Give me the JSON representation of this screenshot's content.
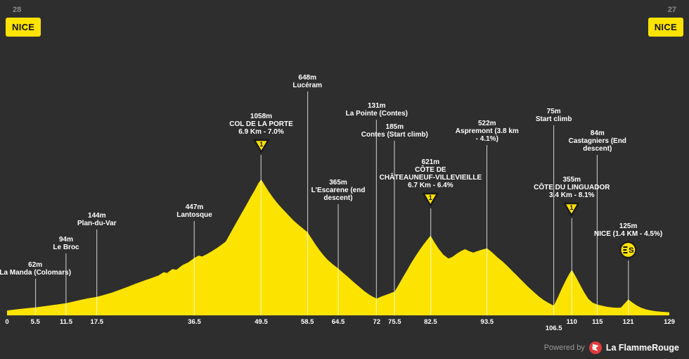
{
  "stage": {
    "left_number": "28",
    "left_name": "NICE",
    "right_number": "27",
    "right_name": "NICE"
  },
  "footer": {
    "powered_by": "Powered by",
    "brand": "La FlammeRouge"
  },
  "colors": {
    "background": "#2E2E2E",
    "profile_yellow": "#FCE300",
    "marker_line": "#FFFFFF",
    "text_light": "#FFFFFF",
    "text_gray": "#8A8A8A",
    "logo_red": "#E23B3B",
    "icon_outline": "#1A1A1A"
  },
  "chart_data": {
    "type": "area",
    "x_unit": "km",
    "y_unit": "m",
    "x_range": [
      0,
      129
    ],
    "y_range": [
      0,
      1100
    ],
    "grid": false,
    "legend": false,
    "x_ticks": [
      {
        "km": 0,
        "label": "0"
      },
      {
        "km": 5.5,
        "label": "5.5"
      },
      {
        "km": 11.5,
        "label": "11.5"
      },
      {
        "km": 17.5,
        "label": "17.5"
      },
      {
        "km": 36.5,
        "label": "36.5"
      },
      {
        "km": 49.5,
        "label": "49.5"
      },
      {
        "km": 58.5,
        "label": "58.5"
      },
      {
        "km": 64.5,
        "label": "64.5"
      },
      {
        "km": 72,
        "label": "72"
      },
      {
        "km": 75.5,
        "label": "75.5"
      },
      {
        "km": 82.5,
        "label": "82.5"
      },
      {
        "km": 93.5,
        "label": "93.5"
      },
      {
        "km": 106.5,
        "label": "106.5",
        "dy": 9
      },
      {
        "km": 110,
        "label": "110"
      },
      {
        "km": 115,
        "label": "115"
      },
      {
        "km": 121,
        "label": "121"
      },
      {
        "km": 129,
        "label": "129"
      }
    ],
    "markers": [
      {
        "km": 5.5,
        "elevation": "62m",
        "lines": [
          "62m",
          "La Manda (Colomars)"
        ],
        "icon": null,
        "line_h": 52
      },
      {
        "km": 11.5,
        "elevation": "94m",
        "lines": [
          "94m",
          "Le Broc"
        ],
        "icon": null,
        "line_h": 88
      },
      {
        "km": 17.5,
        "elevation": "144m",
        "lines": [
          "144m",
          "Plan-du-Var"
        ],
        "icon": null,
        "line_h": 122
      },
      {
        "km": 36.5,
        "elevation": "447m",
        "lines": [
          "447m",
          "Lantosque"
        ],
        "icon": null,
        "line_h": 134
      },
      {
        "km": 49.5,
        "elevation": "1058m",
        "lines": [
          "1058m",
          "COL DE LA PORTE",
          "6.9 Km - 7.0%"
        ],
        "icon": "cat",
        "icon_text": "1",
        "line_h": 228
      },
      {
        "km": 58.5,
        "elevation": "648m",
        "lines": [
          "648m",
          "Lucéram"
        ],
        "icon": null,
        "line_h": 318
      },
      {
        "km": 64.5,
        "elevation": "365m",
        "lines": [
          "365m",
          "L'Escarene (end",
          "descent)"
        ],
        "icon": null,
        "line_h": 158
      },
      {
        "km": 72,
        "elevation": "131m",
        "lines": [
          "131m",
          "La Pointe (Contes)"
        ],
        "icon": null,
        "line_h": 278
      },
      {
        "km": 75.5,
        "elevation": "185m",
        "lines": [
          "185m",
          "Contes (Start climb)"
        ],
        "icon": null,
        "line_h": 248
      },
      {
        "km": 82.5,
        "elevation": "621m",
        "lines": [
          "621m",
          "CÔTE DE",
          "CHÂTEAUNEUF-VILLEVIEILLE",
          "6.7 Km - 6.4%"
        ],
        "icon": "cat",
        "icon_text": "1",
        "line_h": 152
      },
      {
        "km": 93.5,
        "elevation": "522m",
        "lines": [
          "522m",
          "Aspremont (3.8 km",
          "- 4.1%)"
        ],
        "icon": null,
        "line_h": 242
      },
      {
        "km": 106.5,
        "elevation": "75m",
        "lines": [
          "75m",
          "Start climb"
        ],
        "icon": null,
        "line_h": 270
      },
      {
        "km": 110,
        "elevation": "355m",
        "lines": [
          "355m",
          "CÔTE DU LINGUADOR",
          "3.4 Km - 8.1%"
        ],
        "icon": "cat",
        "icon_text": "1",
        "line_h": 138
      },
      {
        "km": 115,
        "elevation": "84m",
        "lines": [
          "84m",
          "Castagniers (End",
          "descent)"
        ],
        "icon": null,
        "line_h": 228
      },
      {
        "km": 121,
        "elevation": "125m",
        "lines": [
          "125m",
          "NICE (1.4 KM - 4.5%)"
        ],
        "icon": "finish",
        "line_h": 78
      }
    ],
    "profile": [
      [
        0,
        38
      ],
      [
        1.5,
        45
      ],
      [
        3,
        52
      ],
      [
        4.5,
        58
      ],
      [
        5.5,
        62
      ],
      [
        7,
        70
      ],
      [
        8.5,
        78
      ],
      [
        10,
        86
      ],
      [
        11.5,
        94
      ],
      [
        13,
        108
      ],
      [
        14.5,
        122
      ],
      [
        16,
        134
      ],
      [
        17.5,
        144
      ],
      [
        19,
        160
      ],
      [
        20.5,
        178
      ],
      [
        22,
        200
      ],
      [
        23.5,
        222
      ],
      [
        25,
        246
      ],
      [
        26.5,
        268
      ],
      [
        28,
        288
      ],
      [
        29.5,
        310
      ],
      [
        30.5,
        336
      ],
      [
        31.2,
        330
      ],
      [
        32.2,
        360
      ],
      [
        33,
        355
      ],
      [
        34.2,
        392
      ],
      [
        35.3,
        412
      ],
      [
        36.5,
        447
      ],
      [
        37.3,
        465
      ],
      [
        38,
        458
      ],
      [
        39,
        478
      ],
      [
        40,
        502
      ],
      [
        41,
        527
      ],
      [
        42,
        556
      ],
      [
        42.6,
        575
      ],
      [
        43.4,
        632
      ],
      [
        44.2,
        690
      ],
      [
        45,
        746
      ],
      [
        45.8,
        802
      ],
      [
        46.6,
        858
      ],
      [
        47.4,
        916
      ],
      [
        48.2,
        972
      ],
      [
        49,
        1032
      ],
      [
        49.5,
        1058
      ],
      [
        50.2,
        1012
      ],
      [
        51,
        962
      ],
      [
        51.8,
        916
      ],
      [
        52.6,
        876
      ],
      [
        53.4,
        840
      ],
      [
        54.2,
        806
      ],
      [
        55,
        772
      ],
      [
        55.8,
        738
      ],
      [
        56.6,
        710
      ],
      [
        57.4,
        684
      ],
      [
        58.5,
        648
      ],
      [
        59.3,
        600
      ],
      [
        60.1,
        550
      ],
      [
        60.9,
        505
      ],
      [
        61.7,
        465
      ],
      [
        62.5,
        430
      ],
      [
        63.5,
        396
      ],
      [
        64.5,
        365
      ],
      [
        65.5,
        330
      ],
      [
        66.5,
        296
      ],
      [
        67.5,
        260
      ],
      [
        68.5,
        226
      ],
      [
        69.5,
        192
      ],
      [
        70.5,
        162
      ],
      [
        71.2,
        146
      ],
      [
        72,
        131
      ],
      [
        73,
        148
      ],
      [
        74,
        162
      ],
      [
        75.5,
        185
      ],
      [
        76.3,
        240
      ],
      [
        77.1,
        296
      ],
      [
        77.9,
        350
      ],
      [
        78.7,
        406
      ],
      [
        79.5,
        456
      ],
      [
        80.3,
        506
      ],
      [
        81.1,
        550
      ],
      [
        81.9,
        592
      ],
      [
        82.5,
        621
      ],
      [
        83.2,
        572
      ],
      [
        84,
        522
      ],
      [
        85,
        472
      ],
      [
        86,
        442
      ],
      [
        86.8,
        456
      ],
      [
        87.6,
        480
      ],
      [
        88.4,
        500
      ],
      [
        89.2,
        515
      ],
      [
        90,
        500
      ],
      [
        90.8,
        488
      ],
      [
        91.6,
        500
      ],
      [
        92.5,
        512
      ],
      [
        93.5,
        522
      ],
      [
        94.5,
        490
      ],
      [
        95.5,
        452
      ],
      [
        96.5,
        420
      ],
      [
        97.5,
        382
      ],
      [
        98.5,
        342
      ],
      [
        99.5,
        302
      ],
      [
        100.5,
        262
      ],
      [
        101.5,
        222
      ],
      [
        102.5,
        186
      ],
      [
        103.5,
        150
      ],
      [
        104.5,
        120
      ],
      [
        105.5,
        96
      ],
      [
        106.5,
        75
      ],
      [
        107.3,
        140
      ],
      [
        108,
        205
      ],
      [
        108.8,
        270
      ],
      [
        109.4,
        315
      ],
      [
        110,
        355
      ],
      [
        110.8,
        300
      ],
      [
        111.6,
        240
      ],
      [
        112.4,
        180
      ],
      [
        113.2,
        130
      ],
      [
        114,
        100
      ],
      [
        115,
        84
      ],
      [
        116,
        74
      ],
      [
        117,
        66
      ],
      [
        118,
        61
      ],
      [
        119,
        59
      ],
      [
        119.6,
        62
      ],
      [
        120.2,
        88
      ],
      [
        120.6,
        106
      ],
      [
        121,
        125
      ],
      [
        121.8,
        100
      ],
      [
        122.6,
        78
      ],
      [
        123.5,
        60
      ],
      [
        124.5,
        46
      ],
      [
        125.5,
        38
      ],
      [
        126.5,
        32
      ],
      [
        127.5,
        28
      ],
      [
        129,
        24
      ]
    ]
  }
}
